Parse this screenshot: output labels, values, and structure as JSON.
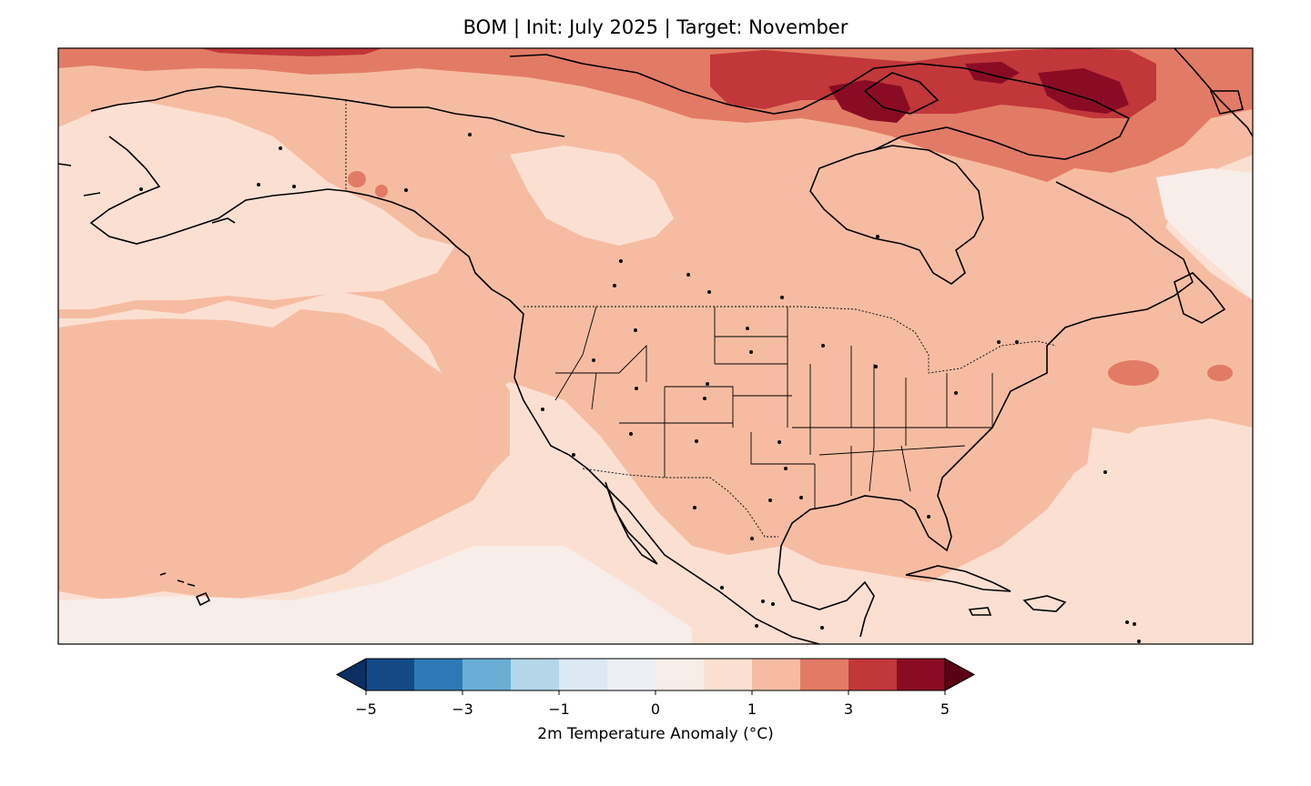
{
  "title": "BOM | Init: July 2025 | Target: November",
  "colorbar": {
    "label": "2m Temperature Anomaly (°C)",
    "ticks": [
      "−5",
      "−3",
      "−1",
      "0",
      "1",
      "3",
      "5"
    ],
    "tick_values": [
      -5,
      -3,
      -1,
      0,
      1,
      3,
      5
    ],
    "bins": [
      {
        "min": -5,
        "max": -4,
        "color": "#134a86"
      },
      {
        "min": -4,
        "max": -3,
        "color": "#2e79b5"
      },
      {
        "min": -3,
        "max": -2,
        "color": "#6aaed6"
      },
      {
        "min": -2,
        "max": -1,
        "color": "#b4d6e8"
      },
      {
        "min": -1,
        "max": -0.5,
        "color": "#dbe9f3"
      },
      {
        "min": -0.5,
        "max": 0,
        "color": "#ecf0f4"
      },
      {
        "min": 0,
        "max": 0.5,
        "color": "#f7ede9"
      },
      {
        "min": 0.5,
        "max": 1,
        "color": "#fbe0d2"
      },
      {
        "min": 1,
        "max": 2,
        "color": "#f6bca2"
      },
      {
        "min": 2,
        "max": 3,
        "color": "#e27b65"
      },
      {
        "min": 3,
        "max": 4,
        "color": "#c1373a"
      },
      {
        "min": 4,
        "max": 5,
        "color": "#8a0c24"
      }
    ],
    "under_color": "#0b2f63",
    "over_color": "#5a0015"
  },
  "map": {
    "region": "North America",
    "features": [
      "coastlines",
      "country borders",
      "US state boundaries",
      "city markers"
    ],
    "dominant_anomaly": "0.5 to 2 °C"
  }
}
